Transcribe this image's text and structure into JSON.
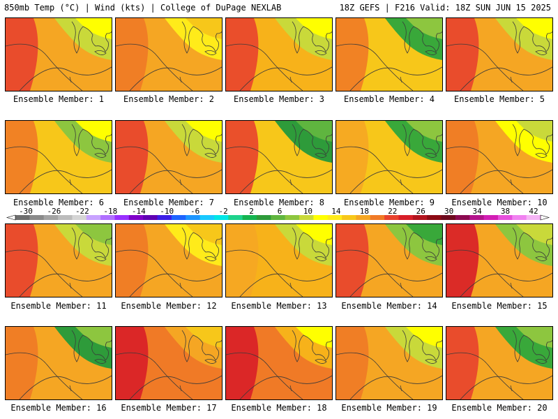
{
  "header": {
    "left": "850mb Temp (°C) | Wind (kts) | College of DuPage NEXLAB",
    "right": "18Z GEFS | F216 Valid: 18Z SUN JUN 15 2025"
  },
  "members": [
    {
      "label": "Ensemble Member: 1",
      "bg": "#f5a623",
      "west": "#e8422e",
      "north": "#c9d93a",
      "north_core": "#ffff00"
    },
    {
      "label": "Ensemble Member: 2",
      "bg": "#f5a623",
      "west": "#f07a26",
      "north": "#ffeb1a",
      "north_core": "#f7c71a"
    },
    {
      "label": "Ensemble Member: 3",
      "bg": "#f7b21a",
      "west": "#e8422e",
      "north": "#c9d93a",
      "north_core": "#ffff00"
    },
    {
      "label": "Ensemble Member: 4",
      "bg": "#f7c71a",
      "west": "#f07a26",
      "north": "#39a83a",
      "north_core": "#8dc63f"
    },
    {
      "label": "Ensemble Member: 5",
      "bg": "#f5a623",
      "west": "#e8422e",
      "north": "#c9d93a",
      "north_core": "#ffff00"
    },
    {
      "label": "Ensemble Member: 6",
      "bg": "#f7c71a",
      "west": "#f07a26",
      "north": "#8dc63f",
      "north_core": "#ffff00"
    },
    {
      "label": "Ensemble Member: 7",
      "bg": "#f5a623",
      "west": "#e8422e",
      "north": "#c9d93a",
      "north_core": "#ffff00"
    },
    {
      "label": "Ensemble Member: 8",
      "bg": "#f7c71a",
      "west": "#e8422e",
      "north": "#2e9b3a",
      "north_core": "#5fb53f"
    },
    {
      "label": "Ensemble Member: 9",
      "bg": "#f7c71a",
      "west": "#f5a623",
      "north": "#39a83a",
      "north_core": "#8dc63f"
    },
    {
      "label": "Ensemble Member: 10",
      "bg": "#f5a623",
      "west": "#f07a26",
      "north": "#ffff00",
      "north_core": "#c9d93a"
    },
    {
      "label": "Ensemble Member: 11",
      "bg": "#f5a623",
      "west": "#e8422e",
      "north": "#c9d93a",
      "north_core": "#8dc63f"
    },
    {
      "label": "Ensemble Member: 12",
      "bg": "#f5a623",
      "west": "#f07a26",
      "north": "#ffeb1a",
      "north_core": "#f7c71a"
    },
    {
      "label": "Ensemble Member: 13",
      "bg": "#f7b21a",
      "west": "#f5a623",
      "north": "#c9d93a",
      "north_core": "#ffff00"
    },
    {
      "label": "Ensemble Member: 14",
      "bg": "#f5a623",
      "west": "#e8422e",
      "north": "#8dc63f",
      "north_core": "#39a83a"
    },
    {
      "label": "Ensemble Member: 15",
      "bg": "#f5a623",
      "west": "#d81e28",
      "north": "#8dc63f",
      "north_core": "#c9d93a"
    },
    {
      "label": "Ensemble Member: 16",
      "bg": "#f5a623",
      "west": "#f07a26",
      "north": "#2e9b3a",
      "north_core": "#8dc63f"
    },
    {
      "label": "Ensemble Member: 17",
      "bg": "#f07a26",
      "west": "#d81e28",
      "north": "#f5a623",
      "north_core": "#f7c71a"
    },
    {
      "label": "Ensemble Member: 18",
      "bg": "#f07a26",
      "west": "#d81e28",
      "north": "#f7b21a",
      "north_core": "#ffff00"
    },
    {
      "label": "Ensemble Member: 19",
      "bg": "#f5a623",
      "west": "#f07a26",
      "north": "#c9d93a",
      "north_core": "#ffff00"
    },
    {
      "label": "Ensemble Member: 20",
      "bg": "#f5a623",
      "west": "#e8422e",
      "north": "#39a83a",
      "north_core": "#8dc63f"
    }
  ],
  "colorbar": {
    "ticks": [
      "-30",
      "-26",
      "-22",
      "-18",
      "-14",
      "-10",
      "-6",
      "-2",
      "2",
      "6",
      "10",
      "14",
      "18",
      "22",
      "26",
      "30",
      "34",
      "38",
      "42"
    ],
    "colors": [
      "#6e6e6e",
      "#8a8a8a",
      "#a3a3a3",
      "#bcbcbc",
      "#d5d5d5",
      "#c8a2ff",
      "#b070ff",
      "#9930ff",
      "#7f00c8",
      "#5f00b3",
      "#3c1ee6",
      "#1e64ff",
      "#1e96ff",
      "#19c8ff",
      "#00e6e6",
      "#1ed28c",
      "#14b450",
      "#2e9b3a",
      "#5fb53f",
      "#8dc63f",
      "#c9d93a",
      "#ffff00",
      "#ffeb1a",
      "#f7c71a",
      "#f5a623",
      "#f07a26",
      "#e8422e",
      "#d81e28",
      "#b3141e",
      "#8c0a14",
      "#6e0a1e",
      "#8c0a50",
      "#b3148c",
      "#d21eb4",
      "#e650dc",
      "#f082f0",
      "#f5b4f5"
    ]
  }
}
